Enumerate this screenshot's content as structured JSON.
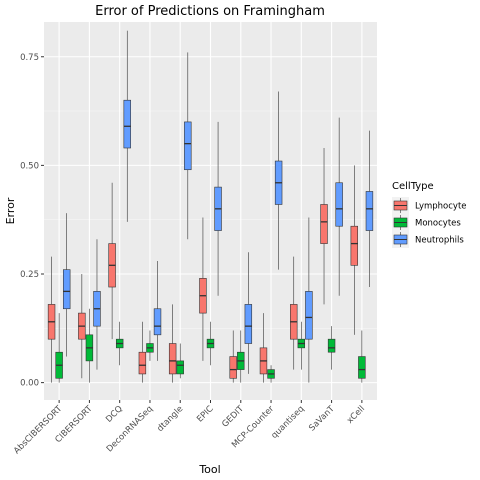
{
  "chart_data": {
    "type": "boxplot",
    "title": "Error of Predictions on Framingham",
    "xlabel": "Tool",
    "ylabel": "Error",
    "ylim": [
      -0.04,
      0.83
    ],
    "yticks": [
      0.0,
      0.25,
      0.5,
      0.75
    ],
    "ytick_labels": [
      "0.00",
      "0.25",
      "0.50",
      "0.75"
    ],
    "grid": true,
    "legend_position": "right",
    "legend_title": "CellType",
    "categories": [
      "AbsCIBERSORT",
      "CIBERSORT",
      "DCQ",
      "DeconRNASeq",
      "dtangle",
      "EPIC",
      "GEDIT",
      "MCP-Counter",
      "quantiseq",
      "SaVanT",
      "xCell"
    ],
    "series": [
      {
        "name": "Lymphocyte",
        "color": "#F8766D",
        "boxes": [
          {
            "min": 0.0,
            "q1": 0.1,
            "median": 0.14,
            "q3": 0.18,
            "max": 0.29
          },
          {
            "min": 0.01,
            "q1": 0.1,
            "median": 0.13,
            "q3": 0.16,
            "max": 0.25
          },
          {
            "min": 0.1,
            "q1": 0.22,
            "median": 0.27,
            "q3": 0.32,
            "max": 0.46
          },
          {
            "min": 0.0,
            "q1": 0.02,
            "median": 0.04,
            "q3": 0.07,
            "max": 0.14
          },
          {
            "min": 0.0,
            "q1": 0.02,
            "median": 0.05,
            "q3": 0.09,
            "max": 0.18
          },
          {
            "min": 0.05,
            "q1": 0.16,
            "median": 0.2,
            "q3": 0.24,
            "max": 0.38
          },
          {
            "min": 0.0,
            "q1": 0.01,
            "median": 0.03,
            "q3": 0.06,
            "max": 0.12
          },
          {
            "min": 0.0,
            "q1": 0.02,
            "median": 0.05,
            "q3": 0.08,
            "max": 0.16
          },
          {
            "min": 0.03,
            "q1": 0.1,
            "median": 0.14,
            "q3": 0.18,
            "max": 0.29
          },
          {
            "min": 0.18,
            "q1": 0.32,
            "median": 0.37,
            "q3": 0.41,
            "max": 0.54
          },
          {
            "min": 0.11,
            "q1": 0.27,
            "median": 0.32,
            "q3": 0.36,
            "max": 0.5
          }
        ]
      },
      {
        "name": "Monocytes",
        "color": "#00BA38",
        "boxes": [
          {
            "min": 0.0,
            "q1": 0.01,
            "median": 0.04,
            "q3": 0.07,
            "max": 0.16
          },
          {
            "min": 0.0,
            "q1": 0.05,
            "median": 0.08,
            "q3": 0.11,
            "max": 0.17
          },
          {
            "min": 0.04,
            "q1": 0.08,
            "median": 0.09,
            "q3": 0.1,
            "max": 0.14
          },
          {
            "min": 0.05,
            "q1": 0.07,
            "median": 0.08,
            "q3": 0.09,
            "max": 0.12
          },
          {
            "min": 0.01,
            "q1": 0.02,
            "median": 0.04,
            "q3": 0.05,
            "max": 0.09
          },
          {
            "min": 0.04,
            "q1": 0.08,
            "median": 0.09,
            "q3": 0.1,
            "max": 0.14
          },
          {
            "min": 0.0,
            "q1": 0.03,
            "median": 0.05,
            "q3": 0.07,
            "max": 0.12
          },
          {
            "min": 0.0,
            "q1": 0.01,
            "median": 0.02,
            "q3": 0.03,
            "max": 0.04
          },
          {
            "min": 0.03,
            "q1": 0.08,
            "median": 0.09,
            "q3": 0.1,
            "max": 0.14
          },
          {
            "min": 0.03,
            "q1": 0.07,
            "median": 0.08,
            "q3": 0.1,
            "max": 0.13
          },
          {
            "min": 0.0,
            "q1": 0.01,
            "median": 0.03,
            "q3": 0.06,
            "max": 0.12
          }
        ]
      },
      {
        "name": "Neutrophils",
        "color": "#619CFF",
        "boxes": [
          {
            "min": 0.06,
            "q1": 0.17,
            "median": 0.21,
            "q3": 0.26,
            "max": 0.39
          },
          {
            "min": 0.03,
            "q1": 0.13,
            "median": 0.17,
            "q3": 0.21,
            "max": 0.33
          },
          {
            "min": 0.37,
            "q1": 0.54,
            "median": 0.59,
            "q3": 0.65,
            "max": 0.81
          },
          {
            "min": 0.05,
            "q1": 0.11,
            "median": 0.13,
            "q3": 0.17,
            "max": 0.28
          },
          {
            "min": 0.33,
            "q1": 0.49,
            "median": 0.55,
            "q3": 0.6,
            "max": 0.76
          },
          {
            "min": 0.2,
            "q1": 0.35,
            "median": 0.4,
            "q3": 0.45,
            "max": 0.6
          },
          {
            "min": 0.02,
            "q1": 0.09,
            "median": 0.13,
            "q3": 0.18,
            "max": 0.3
          },
          {
            "min": 0.26,
            "q1": 0.41,
            "median": 0.46,
            "q3": 0.51,
            "max": 0.67
          },
          {
            "min": 0.0,
            "q1": 0.1,
            "median": 0.15,
            "q3": 0.21,
            "max": 0.38
          },
          {
            "min": 0.2,
            "q1": 0.36,
            "median": 0.4,
            "q3": 0.46,
            "max": 0.61
          },
          {
            "min": 0.22,
            "q1": 0.35,
            "median": 0.4,
            "q3": 0.44,
            "max": 0.58
          }
        ]
      }
    ]
  }
}
